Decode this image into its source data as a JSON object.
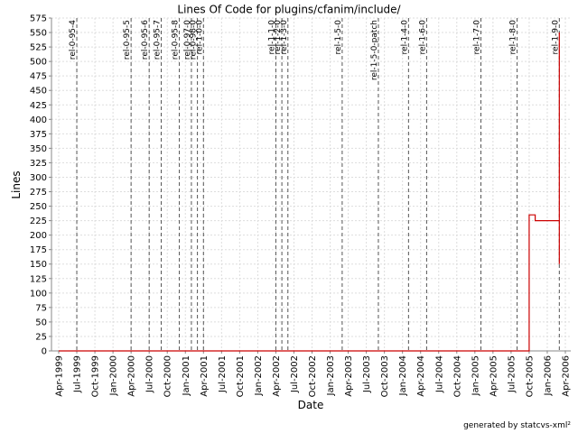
{
  "chart_data": {
    "type": "line",
    "title": "Lines Of Code for plugins/cfanim/include/",
    "x_label": "Date",
    "y_label": "Lines",
    "footer": "generated by statcvs-xml²",
    "x": [
      "Apr-1999",
      "Oct-2005",
      "Oct-2005",
      "Nov-2005",
      "Nov-2005",
      "Mar-2006",
      "Mar-2006",
      "Mar-2006"
    ],
    "series": [
      {
        "name": "Lines",
        "color": "#cc0000",
        "values": [
          0,
          0,
          235,
          235,
          225,
          225,
          550,
          150
        ]
      }
    ],
    "xlim": [
      "Apr-1999",
      "Apr-2006"
    ],
    "xticks": [
      "Apr-1999",
      "Jul-1999",
      "Oct-1999",
      "Jan-2000",
      "Apr-2000",
      "Jul-2000",
      "Oct-2000",
      "Jan-2001",
      "Apr-2001",
      "Jul-2001",
      "Oct-2001",
      "Jan-2002",
      "Apr-2002",
      "Jul-2002",
      "Oct-2002",
      "Jan-2003",
      "Apr-2003",
      "Jul-2003",
      "Oct-2003",
      "Jan-2004",
      "Apr-2004",
      "Jul-2004",
      "Oct-2004",
      "Jan-2005",
      "Apr-2005",
      "Jul-2005",
      "Oct-2005",
      "Jan-2006",
      "Apr-2006"
    ],
    "ylim": [
      0,
      575
    ],
    "yticks": [
      0,
      25,
      50,
      75,
      100,
      125,
      150,
      175,
      200,
      225,
      250,
      275,
      300,
      325,
      350,
      375,
      400,
      425,
      450,
      475,
      500,
      525,
      550,
      575
    ],
    "grid": true,
    "releases": [
      {
        "label": "rel-0-95-4",
        "x": "Jul-1999"
      },
      {
        "label": "rel-0-95-5",
        "x": "Apr-2000"
      },
      {
        "label": "rel-0-95-6",
        "x": "Jul-2000"
      },
      {
        "label": "rel-0-95-7",
        "x": "Sep-2000"
      },
      {
        "label": "rel-0-95-8",
        "x": "Dec-2000"
      },
      {
        "label": "rel-0-97-0",
        "x": "Feb-2001"
      },
      {
        "label": "rel-0-98-0",
        "x": "Mar-2001"
      },
      {
        "label": "rel-1-0-0",
        "x": "Apr-2001"
      },
      {
        "label": "rel-1-1-0",
        "x": "Apr-2002"
      },
      {
        "label": "rel-1-2-0",
        "x": "May-2002"
      },
      {
        "label": "rel-1-3-0",
        "x": "Jun-2002"
      },
      {
        "label": "rel-1-5-0",
        "x": "Mar-2003"
      },
      {
        "label": "rel-1-5-0-patch",
        "x": "Sep-2003"
      },
      {
        "label": "rel-1-4-0",
        "x": "Feb-2004"
      },
      {
        "label": "rel-1-6-0",
        "x": "May-2004"
      },
      {
        "label": "rel-1-7-0",
        "x": "Feb-2005"
      },
      {
        "label": "rel-1-8-0",
        "x": "Aug-2005"
      },
      {
        "label": "rel-1-9-0",
        "x": "Mar-2006"
      }
    ]
  }
}
